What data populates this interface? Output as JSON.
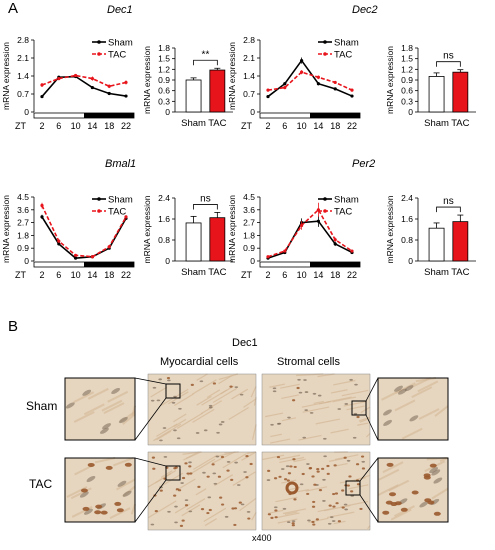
{
  "panels": {
    "a": "A",
    "b": "B"
  },
  "legend": {
    "sham": "Sham",
    "tac": "TAC"
  },
  "ylabel": "mRNA expression",
  "xaxis_prefix": "ZT",
  "colors": {
    "sham": "#000000",
    "tac": "#e8141b"
  },
  "chart_data": [
    {
      "type": "line",
      "gene": "Dec1",
      "x": [
        2,
        6,
        10,
        14,
        18,
        22
      ],
      "ylim": [
        0,
        2.8
      ],
      "yticks": [
        "0",
        "0.7",
        "1.4",
        "2.1",
        "2.8"
      ],
      "series": [
        {
          "name": "Sham",
          "values": [
            0.6,
            1.35,
            1.38,
            0.95,
            0.72,
            0.62
          ],
          "err": [
            0.05,
            0.06,
            0.05,
            0.05,
            0.05,
            0.04
          ]
        },
        {
          "name": "TAC",
          "values": [
            1.05,
            1.3,
            1.42,
            1.3,
            1.0,
            1.15
          ],
          "err": [
            0.08,
            0.06,
            0.06,
            0.08,
            0.07,
            0.08
          ]
        }
      ]
    },
    {
      "type": "bar",
      "gene": "Dec1",
      "categories": [
        "Sham",
        "TAC"
      ],
      "values": [
        0.9,
        1.18
      ],
      "err": [
        0.06,
        0.05
      ],
      "ylim": [
        0,
        1.8
      ],
      "yticks": [
        "0",
        "0.3",
        "0.6",
        "0.9",
        "1.2",
        "1.5",
        "1.8"
      ],
      "significance": "**"
    },
    {
      "type": "line",
      "gene": "Dec2",
      "x": [
        2,
        6,
        10,
        14,
        18,
        22
      ],
      "ylim": [
        0,
        2.8
      ],
      "yticks": [
        "0",
        "0.7",
        "1.4",
        "2.1",
        "2.8"
      ],
      "series": [
        {
          "name": "Sham",
          "values": [
            0.6,
            1.1,
            2.0,
            1.1,
            0.9,
            0.62
          ],
          "err": [
            0.05,
            0.06,
            0.12,
            0.06,
            0.05,
            0.05
          ]
        },
        {
          "name": "TAC",
          "values": [
            0.85,
            0.95,
            1.55,
            1.35,
            1.15,
            0.85
          ],
          "err": [
            0.06,
            0.06,
            0.08,
            0.07,
            0.06,
            0.06
          ]
        }
      ]
    },
    {
      "type": "bar",
      "gene": "Dec2",
      "categories": [
        "Sham",
        "TAC"
      ],
      "values": [
        1.0,
        1.12
      ],
      "err": [
        0.1,
        0.07
      ],
      "ylim": [
        0,
        1.8
      ],
      "yticks": [
        "0",
        "0.3",
        "0.6",
        "0.9",
        "1.2",
        "1.5",
        "1.8"
      ],
      "significance": "ns"
    },
    {
      "type": "line",
      "gene": "Bmal1",
      "x": [
        2,
        6,
        10,
        14,
        18,
        22
      ],
      "ylim": [
        0,
        4.5
      ],
      "yticks": [
        "0",
        "0.9",
        "1.8",
        "2.7",
        "3.6",
        "4.5"
      ],
      "series": [
        {
          "name": "Sham",
          "values": [
            3.1,
            1.2,
            0.2,
            0.3,
            0.9,
            3.0
          ],
          "err": [
            0.15,
            0.1,
            0.05,
            0.05,
            0.08,
            0.1
          ]
        },
        {
          "name": "TAC",
          "values": [
            3.9,
            1.4,
            0.4,
            0.3,
            1.0,
            3.1
          ],
          "err": [
            0.2,
            0.12,
            0.06,
            0.05,
            0.08,
            0.12
          ]
        }
      ]
    },
    {
      "type": "bar",
      "gene": "Bmal1",
      "categories": [
        "Sham",
        "TAC"
      ],
      "values": [
        1.45,
        1.65
      ],
      "err": [
        0.25,
        0.2
      ],
      "ylim": [
        0,
        2.4
      ],
      "yticks": [
        "0",
        "0.8",
        "1.6",
        "2.4"
      ],
      "significance": "ns"
    },
    {
      "type": "line",
      "gene": "Per2",
      "x": [
        2,
        6,
        10,
        14,
        18,
        22
      ],
      "ylim": [
        0,
        4.5
      ],
      "yticks": [
        "0",
        "0.9",
        "1.8",
        "2.7",
        "3.6",
        "4.5"
      ],
      "series": [
        {
          "name": "Sham",
          "values": [
            0.2,
            0.6,
            2.7,
            2.8,
            1.2,
            0.6
          ],
          "err": [
            0.05,
            0.08,
            0.3,
            0.4,
            0.15,
            0.08
          ]
        },
        {
          "name": "TAC",
          "values": [
            0.3,
            0.7,
            2.5,
            3.6,
            1.5,
            0.7
          ],
          "err": [
            0.05,
            0.08,
            0.3,
            0.5,
            0.15,
            0.08
          ]
        }
      ]
    },
    {
      "type": "bar",
      "gene": "Per2",
      "categories": [
        "Sham",
        "TAC"
      ],
      "values": [
        1.25,
        1.5
      ],
      "err": [
        0.2,
        0.25
      ],
      "ylim": [
        0,
        2.4
      ],
      "yticks": [
        "0",
        "0.8",
        "1.6",
        "2.4"
      ],
      "significance": "ns"
    }
  ],
  "histology": {
    "title": "Dec1",
    "col1": "Myocardial cells",
    "col2": "Stromal cells",
    "row1": "Sham",
    "row2": "TAC",
    "magnification": "x400",
    "colors": {
      "tissue": "#e6d5bf",
      "tissue_dark": "#d4b896",
      "stain": "#9a5a2e",
      "nucleus": "#7a6a58"
    }
  }
}
